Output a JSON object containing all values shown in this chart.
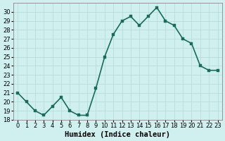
{
  "x": [
    0,
    1,
    2,
    3,
    4,
    5,
    6,
    7,
    8,
    9,
    10,
    11,
    12,
    13,
    14,
    15,
    16,
    17,
    18,
    19,
    20,
    21,
    22,
    23
  ],
  "y": [
    21,
    20,
    19,
    18.5,
    19.5,
    20.5,
    19,
    18.5,
    18.5,
    21.5,
    25,
    27.5,
    29,
    29.5,
    28.5,
    29.5,
    30.5,
    29,
    28.5,
    27,
    26.5,
    24,
    23.5,
    23.5
  ],
  "line_color": "#1a6b5a",
  "marker_color": "#1a6b5a",
  "bg_color": "#cff0ee",
  "grid_color": "#b8ddd9",
  "xlabel": "Humidex (Indice chaleur)",
  "xlim_min": -0.5,
  "xlim_max": 23.5,
  "ylim_min": 18,
  "ylim_max": 31,
  "yticks": [
    18,
    19,
    20,
    21,
    22,
    23,
    24,
    25,
    26,
    27,
    28,
    29,
    30
  ],
  "xticks": [
    0,
    1,
    2,
    3,
    4,
    5,
    6,
    7,
    8,
    9,
    10,
    11,
    12,
    13,
    14,
    15,
    16,
    17,
    18,
    19,
    20,
    21,
    22,
    23
  ],
  "tick_label_fontsize": 6.0,
  "xlabel_fontsize": 7.5,
  "line_width": 1.2,
  "marker_size": 2.5
}
